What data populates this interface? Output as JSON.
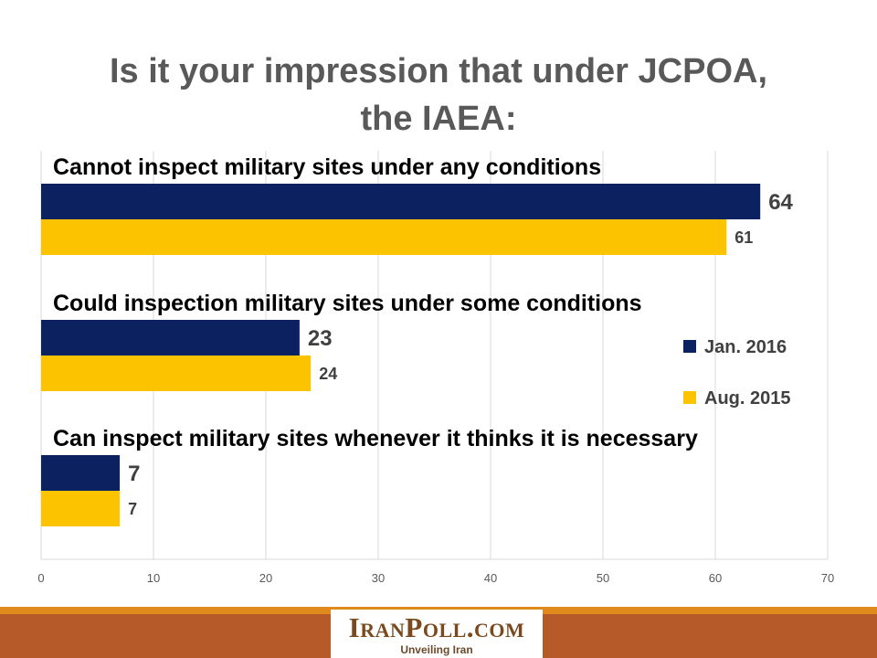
{
  "title": {
    "line1": "Is it your impression that under JCPOA,",
    "line2": "the IAEA:"
  },
  "colors": {
    "series1": "#0c2160",
    "series2": "#fbc300",
    "grid": "#d9d9d9",
    "label": "#404040"
  },
  "chart_data": {
    "type": "bar",
    "orientation": "horizontal",
    "categories": [
      "Cannot inspect military sites under any conditions",
      "Could inspection military sites under some conditions",
      "Can inspect military sites whenever it thinks it is necessary"
    ],
    "series": [
      {
        "name": "Jan. 2016",
        "values": [
          64,
          23,
          7
        ]
      },
      {
        "name": "Aug. 2015",
        "values": [
          61,
          24,
          7
        ]
      }
    ],
    "xlim": [
      0,
      70
    ],
    "xticks": [
      "0",
      "10",
      "20",
      "30",
      "40",
      "50",
      "60",
      "70"
    ],
    "grid": true,
    "legend": "right"
  },
  "footer": {
    "logo_name": "IranPoll.com",
    "logo_tagline": "Unveiling Iran"
  }
}
